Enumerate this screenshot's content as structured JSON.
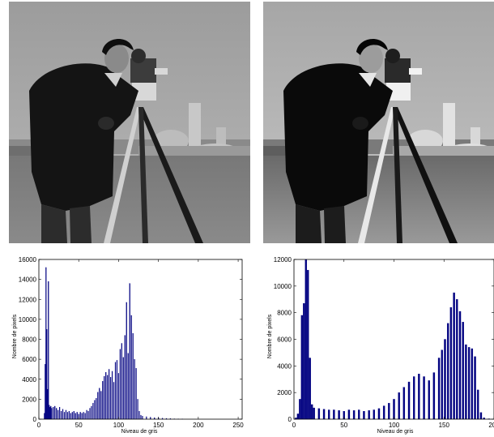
{
  "colors": {
    "bar": "#000080",
    "axis": "#000000",
    "background": "#ffffff"
  },
  "images": [
    {
      "name": "cameraman-original",
      "icon": "cameraman-photo"
    },
    {
      "name": "cameraman-equalized",
      "icon": "cameraman-photo"
    }
  ],
  "chart_data": [
    {
      "type": "bar",
      "title": "",
      "xlabel": "Niveau de gris",
      "ylabel": "Nombre de pixels",
      "xlim": [
        0,
        255
      ],
      "ylim": [
        0,
        16000
      ],
      "xticks": [
        0,
        50,
        100,
        150,
        200,
        250
      ],
      "yticks": [
        0,
        2000,
        4000,
        6000,
        8000,
        10000,
        12000,
        14000,
        16000
      ],
      "grid": false,
      "x": [
        7,
        8,
        9,
        10,
        11,
        12,
        13,
        14,
        15,
        16,
        18,
        20,
        22,
        24,
        26,
        28,
        30,
        32,
        34,
        36,
        38,
        40,
        42,
        44,
        46,
        48,
        50,
        52,
        54,
        56,
        58,
        60,
        62,
        64,
        66,
        68,
        70,
        72,
        74,
        76,
        78,
        80,
        82,
        84,
        86,
        88,
        90,
        92,
        94,
        96,
        98,
        100,
        102,
        104,
        106,
        108,
        110,
        112,
        114,
        116,
        118,
        120,
        122,
        124,
        126,
        128,
        130,
        135,
        140,
        145,
        150,
        155,
        160,
        165,
        170,
        175,
        180
      ],
      "values": [
        600,
        5500,
        15200,
        9000,
        3000,
        13800,
        1400,
        1200,
        1300,
        1100,
        1200,
        1300,
        1100,
        900,
        1200,
        800,
        1000,
        700,
        900,
        700,
        800,
        600,
        700,
        800,
        600,
        700,
        500,
        700,
        600,
        700,
        600,
        900,
        800,
        1100,
        1300,
        1600,
        1900,
        2100,
        2700,
        3100,
        2800,
        3800,
        4300,
        4700,
        4400,
        5000,
        4200,
        4800,
        3700,
        5700,
        5900,
        4600,
        7000,
        7600,
        6200,
        8400,
        11700,
        6600,
        13600,
        10400,
        8600,
        6000,
        5100,
        2000,
        800,
        400,
        300,
        250,
        200,
        150,
        150,
        100,
        80,
        60,
        40,
        30,
        20
      ]
    },
    {
      "type": "bar",
      "title": "",
      "xlabel": "Niveau de gris",
      "ylabel": "Nombre de pixels",
      "xlim": [
        0,
        200
      ],
      "ylim": [
        0,
        12000
      ],
      "xticks": [
        0,
        50,
        100,
        150,
        200
      ],
      "yticks": [
        0,
        2000,
        4000,
        6000,
        8000,
        10000,
        12000
      ],
      "grid": false,
      "x": [
        2,
        4,
        6,
        8,
        10,
        12,
        14,
        16,
        18,
        20,
        25,
        30,
        35,
        40,
        45,
        50,
        55,
        60,
        65,
        70,
        75,
        80,
        85,
        90,
        95,
        100,
        105,
        110,
        115,
        120,
        125,
        130,
        135,
        140,
        145,
        148,
        151,
        154,
        157,
        160,
        163,
        166,
        169,
        172,
        175,
        178,
        181,
        184,
        187,
        190,
        195
      ],
      "values": [
        100,
        400,
        1500,
        7800,
        8700,
        12000,
        11200,
        4600,
        1100,
        850,
        800,
        750,
        700,
        700,
        650,
        600,
        700,
        650,
        700,
        600,
        650,
        700,
        800,
        1000,
        1200,
        1500,
        2000,
        2400,
        2800,
        3200,
        3400,
        3200,
        2900,
        3500,
        4600,
        5200,
        6000,
        7200,
        8400,
        9500,
        9000,
        8100,
        7300,
        5600,
        5400,
        5300,
        4700,
        2200,
        500,
        100,
        30
      ]
    }
  ]
}
